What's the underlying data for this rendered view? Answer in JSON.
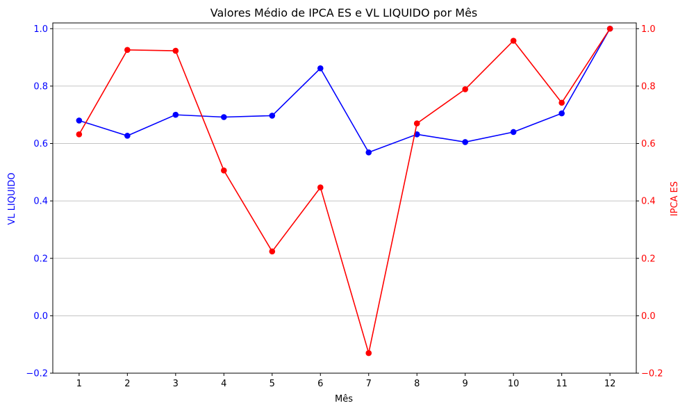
{
  "chart_data": {
    "type": "line",
    "title": "Valores Médio de IPCA ES e VL LIQUIDO por Mês",
    "xlabel": "Mês",
    "x": [
      1,
      2,
      3,
      4,
      5,
      6,
      7,
      8,
      9,
      10,
      11,
      12
    ],
    "x_tick_labels": [
      "1",
      "2",
      "3",
      "4",
      "5",
      "6",
      "7",
      "8",
      "9",
      "10",
      "11",
      "12"
    ],
    "y_left": {
      "label": "VL LIQUIDO",
      "color": "#0000ff",
      "lim": [
        -0.2,
        1.02
      ],
      "ticks": [
        -0.2,
        0.0,
        0.2,
        0.4,
        0.6,
        0.8,
        1.0
      ],
      "tick_labels": [
        "−0.2",
        "0.0",
        "0.2",
        "0.4",
        "0.6",
        "0.8",
        "1.0"
      ]
    },
    "y_right": {
      "label": "IPCA ES",
      "color": "#ff0000",
      "lim": [
        -0.2,
        1.02
      ],
      "ticks": [
        -0.2,
        0.0,
        0.2,
        0.4,
        0.6,
        0.8,
        1.0
      ],
      "tick_labels": [
        "−0.2",
        "0.0",
        "0.2",
        "0.4",
        "0.6",
        "0.8",
        "1.0"
      ]
    },
    "series": [
      {
        "axis": "left",
        "color": "#0000ff",
        "values": [
          0.68,
          0.627,
          0.7,
          0.692,
          0.697,
          0.862,
          0.569,
          0.632,
          0.605,
          0.64,
          0.705,
          1.0
        ]
      },
      {
        "axis": "right",
        "color": "#ff0000",
        "values": [
          0.632,
          0.926,
          0.923,
          0.506,
          0.224,
          0.447,
          -0.13,
          0.67,
          0.789,
          0.958,
          0.742,
          1.0
        ]
      }
    ],
    "grid": "horizontal",
    "markers": "circle"
  }
}
